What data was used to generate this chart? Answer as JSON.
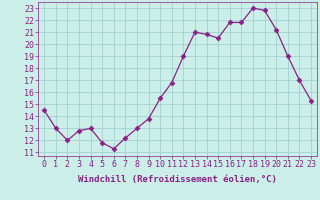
{
  "x": [
    0,
    1,
    2,
    3,
    4,
    5,
    6,
    7,
    8,
    9,
    10,
    11,
    12,
    13,
    14,
    15,
    16,
    17,
    18,
    19,
    20,
    21,
    22,
    23
  ],
  "y": [
    14.5,
    13.0,
    12.0,
    12.8,
    13.0,
    11.8,
    11.3,
    12.2,
    13.0,
    13.8,
    15.5,
    16.8,
    19.0,
    21.0,
    20.8,
    20.5,
    21.8,
    21.8,
    23.0,
    22.8,
    21.2,
    19.0,
    17.0,
    15.3
  ],
  "line_color": "#882288",
  "marker": "D",
  "markersize": 2.5,
  "linewidth": 0.9,
  "bg_color": "#cceee8",
  "grid_color": "#99cccc",
  "xlabel": "Windchill (Refroidissement éolien,°C)",
  "xlabel_fontsize": 6.5,
  "ytick_labels": [
    "11",
    "12",
    "13",
    "14",
    "15",
    "16",
    "17",
    "18",
    "19",
    "20",
    "21",
    "22",
    "23"
  ],
  "ytick_values": [
    11,
    12,
    13,
    14,
    15,
    16,
    17,
    18,
    19,
    20,
    21,
    22,
    23
  ],
  "xlim": [
    -0.5,
    23.5
  ],
  "ylim": [
    10.7,
    23.5
  ],
  "tick_fontsize": 6.0
}
